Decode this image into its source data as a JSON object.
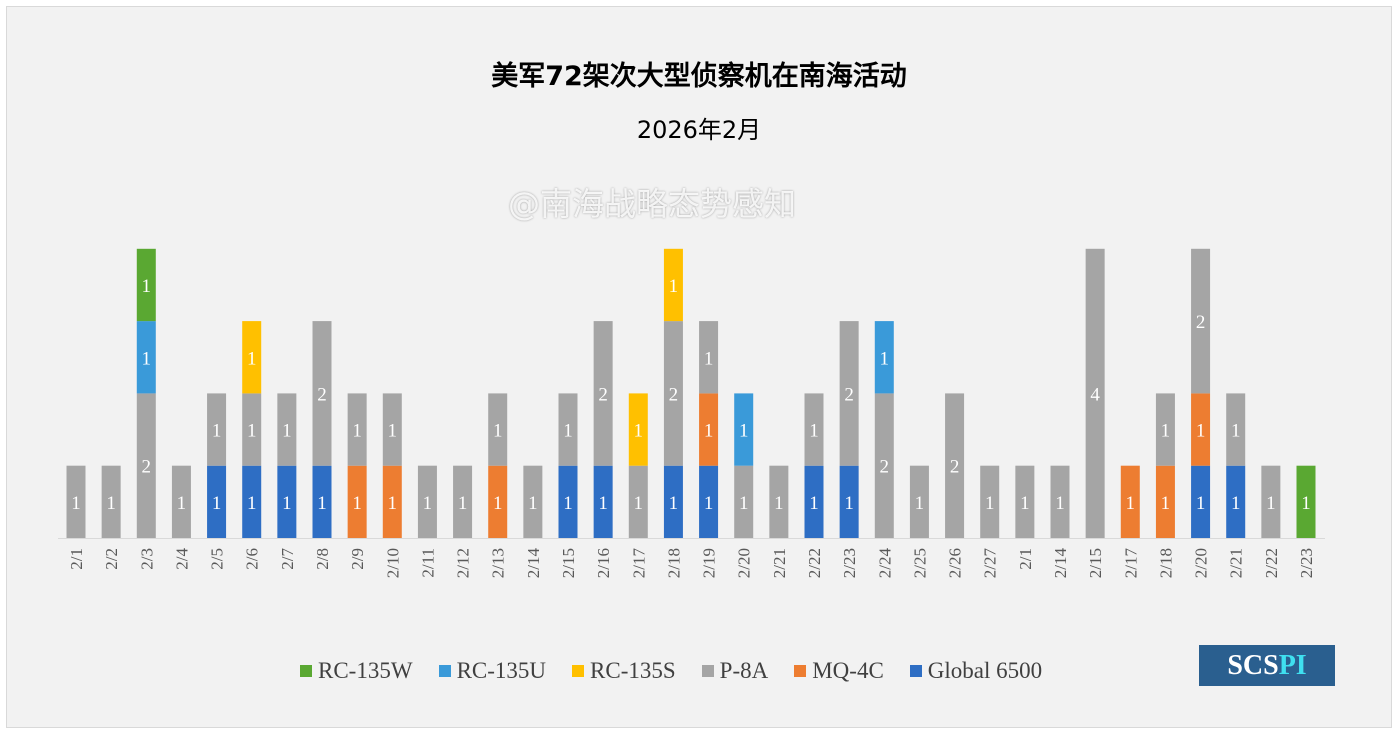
{
  "chart_data": {
    "type": "bar",
    "stacked": true,
    "title": "美军72架次大型侦察机在南海活动",
    "subtitle": "2026年2月",
    "xlabel": "",
    "ylabel": "",
    "ylim": [
      0,
      4
    ],
    "grid": false,
    "legend_position": "bottom",
    "categories": [
      "2/1",
      "2/2",
      "2/3",
      "2/4",
      "2/5",
      "2/6",
      "2/7",
      "2/8",
      "2/9",
      "2/10",
      "2/11",
      "2/12",
      "2/13",
      "2/14",
      "2/15",
      "2/16",
      "2/17",
      "2/18",
      "2/19",
      "2/20",
      "2/21",
      "2/22",
      "2/23",
      "2/24",
      "2/25",
      "2/26",
      "2/27",
      "2/1",
      "2/14",
      "2/15",
      "2/17",
      "2/18",
      "2/20",
      "2/21",
      "2/22",
      "2/23"
    ],
    "series": [
      {
        "name": "Global 6500",
        "color": "#2e6ec4",
        "values": [
          0,
          0,
          0,
          0,
          1,
          1,
          1,
          1,
          0,
          0,
          0,
          0,
          0,
          0,
          1,
          1,
          0,
          1,
          1,
          0,
          0,
          1,
          1,
          0,
          0,
          0,
          0,
          0,
          0,
          0,
          0,
          0,
          1,
          1,
          0,
          0
        ]
      },
      {
        "name": "MQ-4C",
        "color": "#ed7d31",
        "values": [
          0,
          0,
          0,
          0,
          0,
          0,
          0,
          0,
          1,
          1,
          0,
          0,
          1,
          0,
          0,
          0,
          0,
          0,
          1,
          0,
          0,
          0,
          0,
          0,
          0,
          0,
          0,
          0,
          0,
          0,
          1,
          1,
          1,
          0,
          0,
          0
        ]
      },
      {
        "name": "P-8A",
        "color": "#a5a5a5",
        "values": [
          1,
          1,
          2,
          1,
          1,
          1,
          1,
          2,
          1,
          1,
          1,
          1,
          1,
          1,
          1,
          2,
          1,
          2,
          1,
          1,
          1,
          1,
          2,
          2,
          1,
          2,
          1,
          1,
          1,
          4,
          0,
          1,
          2,
          1,
          1,
          0
        ]
      },
      {
        "name": "RC-135S",
        "color": "#ffc000",
        "values": [
          0,
          0,
          0,
          0,
          0,
          1,
          0,
          0,
          0,
          0,
          0,
          0,
          0,
          0,
          0,
          0,
          1,
          1,
          0,
          0,
          0,
          0,
          0,
          0,
          0,
          0,
          0,
          0,
          0,
          0,
          0,
          0,
          0,
          0,
          0,
          0
        ]
      },
      {
        "name": "RC-135U",
        "color": "#3a9ad9",
        "values": [
          0,
          0,
          1,
          0,
          0,
          0,
          0,
          0,
          0,
          0,
          0,
          0,
          0,
          0,
          0,
          0,
          0,
          0,
          0,
          1,
          0,
          0,
          0,
          1,
          0,
          0,
          0,
          0,
          0,
          0,
          0,
          0,
          0,
          0,
          0,
          0
        ]
      },
      {
        "name": "RC-135W",
        "color": "#5aa832",
        "values": [
          0,
          0,
          1,
          0,
          0,
          0,
          0,
          0,
          0,
          0,
          0,
          0,
          0,
          0,
          0,
          0,
          0,
          0,
          0,
          0,
          0,
          0,
          0,
          0,
          0,
          0,
          0,
          0,
          0,
          0,
          0,
          0,
          0,
          0,
          0,
          1
        ]
      }
    ],
    "legend_order": [
      "RC-135W",
      "RC-135U",
      "RC-135S",
      "P-8A",
      "MQ-4C",
      "Global 6500"
    ]
  },
  "watermark": "@南海战略态势感知",
  "logo": {
    "a": "SCS",
    "b": "PI"
  }
}
